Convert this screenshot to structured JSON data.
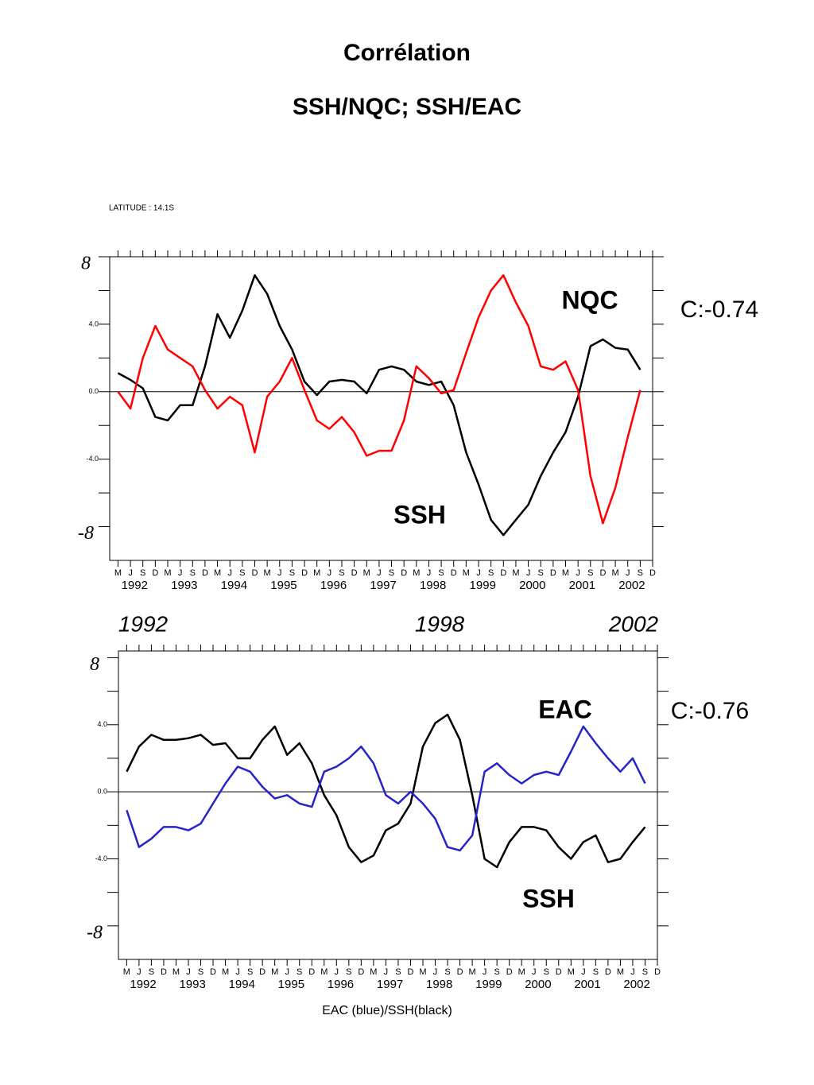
{
  "title": "Corrélation",
  "subtitle": "SSH/NQC; SSH/EAC",
  "chart_data": [
    {
      "type": "line",
      "subtitle": "LATITUDE : 14.1S",
      "x": [
        "1992-03",
        "1992-06",
        "1992-09",
        "1992-12",
        "1993-03",
        "1993-06",
        "1993-09",
        "1993-12",
        "1994-03",
        "1994-06",
        "1994-09",
        "1994-12",
        "1995-03",
        "1995-06",
        "1995-09",
        "1995-12",
        "1996-03",
        "1996-06",
        "1996-09",
        "1996-12",
        "1997-03",
        "1997-06",
        "1997-09",
        "1997-12",
        "1998-03",
        "1998-06",
        "1998-09",
        "1998-12",
        "1999-03",
        "1999-06",
        "1999-09",
        "1999-12",
        "2000-03",
        "2000-06",
        "2000-09",
        "2000-12",
        "2001-03",
        "2001-06",
        "2001-09",
        "2001-12",
        "2002-03",
        "2002-06",
        "2002-09"
      ],
      "series": [
        {
          "name": "SSH",
          "color": "#000000",
          "values": [
            1.1,
            0.7,
            0.2,
            -1.5,
            -1.7,
            -0.8,
            -0.8,
            1.5,
            4.6,
            3.2,
            4.8,
            6.9,
            5.8,
            3.9,
            2.5,
            0.6,
            -0.2,
            0.6,
            0.7,
            0.6,
            -0.1,
            1.3,
            1.5,
            1.3,
            0.6,
            0.4,
            0.6,
            -0.8,
            -3.6,
            -5.5,
            -7.6,
            -8.5,
            -7.6,
            -6.7,
            -5.0,
            -3.6,
            -2.4,
            -0.3,
            2.7,
            3.1,
            2.6,
            2.5,
            1.3
          ]
        },
        {
          "name": "NQC",
          "color": "#ff0000",
          "values": [
            0.0,
            -1.0,
            2.0,
            3.9,
            2.5,
            2.0,
            1.5,
            0.1,
            -1.0,
            -0.3,
            -0.8,
            -3.6,
            -0.3,
            0.6,
            2.0,
            0.1,
            -1.7,
            -2.2,
            -1.5,
            -2.4,
            -3.8,
            -3.5,
            -3.5,
            -1.7,
            1.5,
            0.8,
            -0.1,
            0.1,
            2.3,
            4.4,
            6.0,
            6.9,
            5.3,
            3.9,
            1.5,
            1.3,
            1.8,
            0.1,
            -5.0,
            -7.8,
            -5.7,
            -2.7,
            0.1
          ]
        }
      ],
      "xlim": [
        "1992-01",
        "2002-12"
      ],
      "xticks": [
        {
          "value": "1992-03",
          "label": "M"
        },
        {
          "value": "1992-06",
          "label": "J"
        },
        {
          "value": "1992-09",
          "label": "S"
        },
        {
          "value": "1992-12",
          "label": "D"
        },
        {
          "value": "1993-03",
          "label": "M"
        },
        {
          "value": "1993-06",
          "label": "J"
        },
        {
          "value": "1993-09",
          "label": "S"
        },
        {
          "value": "1993-12",
          "label": "D"
        },
        {
          "value": "1994-03",
          "label": "M"
        },
        {
          "value": "1994-06",
          "label": "J"
        },
        {
          "value": "1994-09",
          "label": "S"
        },
        {
          "value": "1994-12",
          "label": "D"
        },
        {
          "value": "1995-03",
          "label": "M"
        },
        {
          "value": "1995-06",
          "label": "J"
        },
        {
          "value": "1995-09",
          "label": "S"
        },
        {
          "value": "1995-12",
          "label": "D"
        },
        {
          "value": "1996-03",
          "label": "M"
        },
        {
          "value": "1996-06",
          "label": "J"
        },
        {
          "value": "1996-09",
          "label": "S"
        },
        {
          "value": "1996-12",
          "label": "D"
        },
        {
          "value": "1997-03",
          "label": "M"
        },
        {
          "value": "1997-06",
          "label": "J"
        },
        {
          "value": "1997-09",
          "label": "S"
        },
        {
          "value": "1997-12",
          "label": "D"
        },
        {
          "value": "1998-03",
          "label": "M"
        },
        {
          "value": "1998-06",
          "label": "J"
        },
        {
          "value": "1998-09",
          "label": "S"
        },
        {
          "value": "1998-12",
          "label": "D"
        },
        {
          "value": "1999-03",
          "label": "M"
        },
        {
          "value": "1999-06",
          "label": "J"
        },
        {
          "value": "1999-09",
          "label": "S"
        },
        {
          "value": "1999-12",
          "label": "D"
        },
        {
          "value": "2000-03",
          "label": "M"
        },
        {
          "value": "2000-06",
          "label": "J"
        },
        {
          "value": "2000-09",
          "label": "S"
        },
        {
          "value": "2000-12",
          "label": "D"
        },
        {
          "value": "2001-03",
          "label": "M"
        },
        {
          "value": "2001-06",
          "label": "J"
        },
        {
          "value": "2001-09",
          "label": "S"
        },
        {
          "value": "2001-12",
          "label": "D"
        },
        {
          "value": "2002-03",
          "label": "M"
        },
        {
          "value": "2002-06",
          "label": "J"
        },
        {
          "value": "2002-09",
          "label": "S"
        },
        {
          "value": "2002-12",
          "label": "D"
        }
      ],
      "xyears": [
        {
          "value": "1992-07",
          "label": "1992"
        },
        {
          "value": "1993-07",
          "label": "1993"
        },
        {
          "value": "1994-07",
          "label": "1994"
        },
        {
          "value": "1995-07",
          "label": "1995"
        },
        {
          "value": "1996-07",
          "label": "1996"
        },
        {
          "value": "1997-07",
          "label": "1997"
        },
        {
          "value": "1998-07",
          "label": "1998"
        },
        {
          "value": "1999-07",
          "label": "1999"
        },
        {
          "value": "2000-07",
          "label": "2000"
        },
        {
          "value": "2001-07",
          "label": "2001"
        },
        {
          "value": "2002-07",
          "label": "2002"
        }
      ],
      "ylim": [
        -10,
        8
      ],
      "yticks": [
        8,
        {
          "value": 4,
          "label": "4.0"
        },
        {
          "value": 0,
          "label": "0.0"
        },
        {
          "value": -4,
          "label": "-4.0"
        },
        -8
      ],
      "yminor": [
        6,
        2,
        -2,
        -6
      ],
      "hline": 0,
      "annotations": [
        {
          "text": "C:-0.74",
          "color": "#000000"
        }
      ]
    },
    {
      "type": "line",
      "x": [
        "1992-03",
        "1992-06",
        "1992-09",
        "1992-12",
        "1993-03",
        "1993-06",
        "1993-09",
        "1993-12",
        "1994-03",
        "1994-06",
        "1994-09",
        "1994-12",
        "1995-03",
        "1995-06",
        "1995-09",
        "1995-12",
        "1996-03",
        "1996-06",
        "1996-09",
        "1996-12",
        "1997-03",
        "1997-06",
        "1997-09",
        "1997-12",
        "1998-03",
        "1998-06",
        "1998-09",
        "1998-12",
        "1999-03",
        "1999-06",
        "1999-09",
        "1999-12",
        "2000-03",
        "2000-06",
        "2000-09",
        "2000-12",
        "2001-03",
        "2001-06",
        "2001-09",
        "2001-12",
        "2002-03",
        "2002-06",
        "2002-09"
      ],
      "series": [
        {
          "name": "SSH",
          "color": "#000000",
          "values": [
            1.2,
            2.7,
            3.4,
            3.1,
            3.1,
            3.2,
            3.4,
            2.8,
            2.9,
            2.0,
            2.0,
            3.1,
            3.9,
            2.2,
            2.9,
            1.7,
            -0.2,
            -1.4,
            -3.3,
            -4.2,
            -3.8,
            -2.3,
            -1.9,
            -0.7,
            2.7,
            4.1,
            4.6,
            3.1,
            -0.2,
            -4.0,
            -4.5,
            -3.0,
            -2.1,
            -2.1,
            -2.3,
            -3.3,
            -4.0,
            -3.0,
            -2.6,
            -4.2,
            -4.0,
            -3.0,
            -2.1
          ]
        },
        {
          "name": "EAC",
          "color": "#2424c8",
          "values": [
            -1.1,
            -3.3,
            -2.8,
            -2.1,
            -2.1,
            -2.3,
            -1.9,
            -0.7,
            0.5,
            1.5,
            1.2,
            0.3,
            -0.4,
            -0.2,
            -0.7,
            -0.9,
            1.2,
            1.5,
            2.0,
            2.7,
            1.7,
            -0.2,
            -0.7,
            0.0,
            -0.7,
            -1.6,
            -3.3,
            -3.5,
            -2.6,
            1.2,
            1.7,
            1.0,
            0.5,
            1.0,
            1.2,
            1.0,
            2.4,
            3.9,
            2.9,
            2.0,
            1.2,
            2.0,
            0.5
          ]
        }
      ],
      "xlim": [
        "1992-01",
        "2002-12"
      ],
      "xticks": [
        {
          "value": "1992-03",
          "label": "M"
        },
        {
          "value": "1992-06",
          "label": "J"
        },
        {
          "value": "1992-09",
          "label": "S"
        },
        {
          "value": "1992-12",
          "label": "D"
        },
        {
          "value": "1993-03",
          "label": "M"
        },
        {
          "value": "1993-06",
          "label": "J"
        },
        {
          "value": "1993-09",
          "label": "S"
        },
        {
          "value": "1993-12",
          "label": "D"
        },
        {
          "value": "1994-03",
          "label": "M"
        },
        {
          "value": "1994-06",
          "label": "J"
        },
        {
          "value": "1994-09",
          "label": "S"
        },
        {
          "value": "1994-12",
          "label": "D"
        },
        {
          "value": "1995-03",
          "label": "M"
        },
        {
          "value": "1995-06",
          "label": "J"
        },
        {
          "value": "1995-09",
          "label": "S"
        },
        {
          "value": "1995-12",
          "label": "D"
        },
        {
          "value": "1996-03",
          "label": "M"
        },
        {
          "value": "1996-06",
          "label": "J"
        },
        {
          "value": "1996-09",
          "label": "S"
        },
        {
          "value": "1996-12",
          "label": "D"
        },
        {
          "value": "1997-03",
          "label": "M"
        },
        {
          "value": "1997-06",
          "label": "J"
        },
        {
          "value": "1997-09",
          "label": "S"
        },
        {
          "value": "1997-12",
          "label": "D"
        },
        {
          "value": "1998-03",
          "label": "M"
        },
        {
          "value": "1998-06",
          "label": "J"
        },
        {
          "value": "1998-09",
          "label": "S"
        },
        {
          "value": "1998-12",
          "label": "D"
        },
        {
          "value": "1999-03",
          "label": "M"
        },
        {
          "value": "1999-06",
          "label": "J"
        },
        {
          "value": "1999-09",
          "label": "S"
        },
        {
          "value": "1999-12",
          "label": "D"
        },
        {
          "value": "2000-03",
          "label": "M"
        },
        {
          "value": "2000-06",
          "label": "J"
        },
        {
          "value": "2000-09",
          "label": "S"
        },
        {
          "value": "2000-12",
          "label": "D"
        },
        {
          "value": "2001-03",
          "label": "M"
        },
        {
          "value": "2001-06",
          "label": "J"
        },
        {
          "value": "2001-09",
          "label": "S"
        },
        {
          "value": "2001-12",
          "label": "D"
        },
        {
          "value": "2002-03",
          "label": "M"
        },
        {
          "value": "2002-06",
          "label": "J"
        },
        {
          "value": "2002-09",
          "label": "S"
        },
        {
          "value": "2002-12",
          "label": "D"
        }
      ],
      "xyears": [
        {
          "value": "1992-07",
          "label": "1992"
        },
        {
          "value": "1993-07",
          "label": "1993"
        },
        {
          "value": "1994-07",
          "label": "1994"
        },
        {
          "value": "1995-07",
          "label": "1995"
        },
        {
          "value": "1996-07",
          "label": "1996"
        },
        {
          "value": "1997-07",
          "label": "1997"
        },
        {
          "value": "1998-07",
          "label": "1998"
        },
        {
          "value": "1999-07",
          "label": "1999"
        },
        {
          "value": "2000-07",
          "label": "2000"
        },
        {
          "value": "2001-07",
          "label": "2001"
        },
        {
          "value": "2002-07",
          "label": "2002"
        }
      ],
      "ylim": [
        -10,
        8.4
      ],
      "yticks": [
        8,
        {
          "value": 4,
          "label": "4.0"
        },
        {
          "value": 0,
          "label": "0.0"
        },
        {
          "value": -4,
          "label": "-4.0"
        },
        -8
      ],
      "yminor": [
        6,
        2,
        -2,
        -6
      ],
      "hline": 0,
      "xlabel": "EAC (blue)/SSH(black)",
      "annotations": [
        {
          "text": "C:-0.76",
          "color": "#000000"
        },
        {
          "text": "1992",
          "color": "#000000"
        },
        {
          "text": "1998",
          "color": "#000000"
        },
        {
          "text": "2002",
          "color": "#000000"
        }
      ]
    }
  ]
}
